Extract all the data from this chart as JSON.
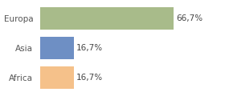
{
  "categories": [
    "Africa",
    "Asia",
    "Europa"
  ],
  "values": [
    16.7,
    16.7,
    66.7
  ],
  "bar_colors": [
    "#f5c18a",
    "#6e8fc4",
    "#a8bb8a"
  ],
  "labels": [
    "16,7%",
    "16,7%",
    "66,7%"
  ],
  "background_color": "#ffffff",
  "xlim": [
    0,
    90
  ],
  "bar_height": 0.75,
  "label_fontsize": 7.5,
  "tick_fontsize": 7.5,
  "figwidth": 2.8,
  "figheight": 1.2,
  "dpi": 100
}
